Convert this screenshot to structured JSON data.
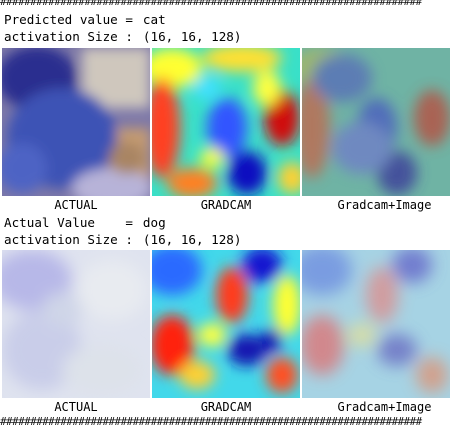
{
  "separator": "######################################################################",
  "samples": [
    {
      "label_title": "Predicted value =",
      "label_value": "cat",
      "activation_title": "activation Size :",
      "activation_value": "(16, 16, 128)",
      "captions": [
        "ACTUAL",
        "GRADCAM",
        "Gradcam+Image"
      ]
    },
    {
      "label_title": "Actual Value    =",
      "label_value": "dog",
      "activation_title": "activation Size :",
      "activation_value": "(16, 16, 128)",
      "captions": [
        "ACTUAL",
        "GRADCAM",
        "Gradcam+Image"
      ]
    }
  ],
  "colors": {
    "jet_red": "#d7191c",
    "jet_yellow": "#ffff33",
    "jet_cyan": "#33ddff",
    "jet_blue": "#1a1aff",
    "jet_dark_blue": "#00008b",
    "photo1_blue": "#3a4fb0",
    "photo1_tan": "#c9a07a",
    "photo2_pale": "#d8dcf0"
  },
  "icons": {
    "photo": "image-thumbnail",
    "heatmap": "gradcam-heatmap",
    "overlay": "gradcam-overlay"
  }
}
